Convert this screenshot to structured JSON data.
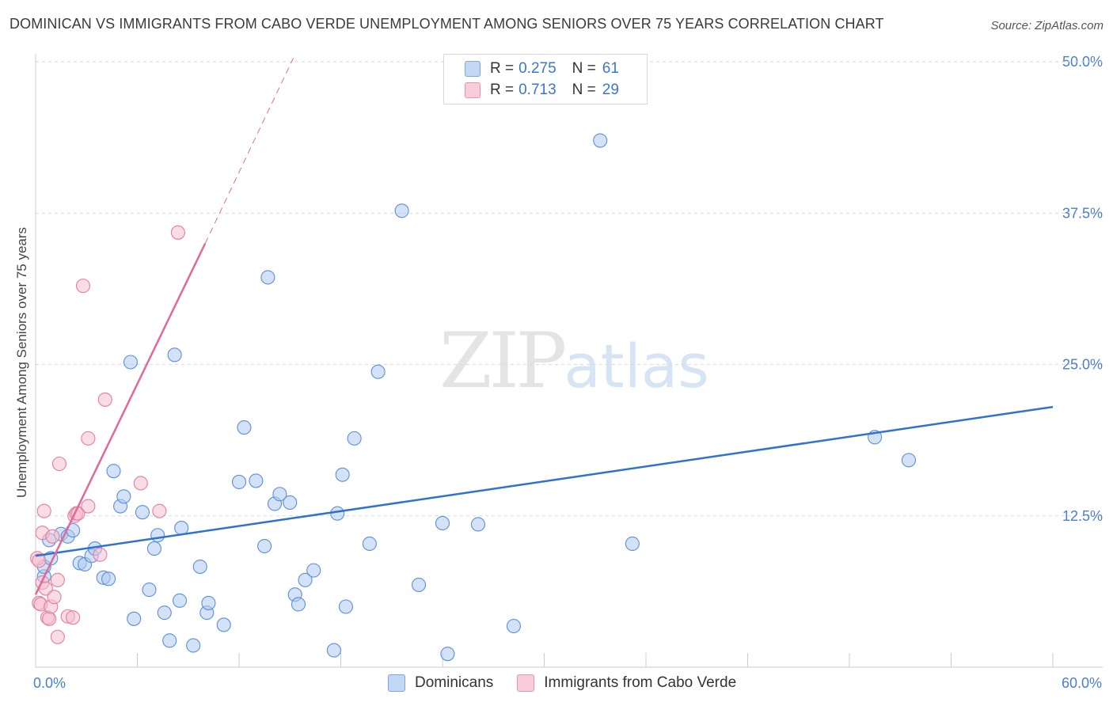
{
  "title": "DOMINICAN VS IMMIGRANTS FROM CABO VERDE UNEMPLOYMENT AMONG SENIORS OVER 75 YEARS CORRELATION CHART",
  "source": "Source: ZipAtlas.com",
  "watermark": {
    "zip": "ZIP",
    "atlas": "atlas"
  },
  "legend": {
    "series1": {
      "r_label": "R = ",
      "r_value": "0.275",
      "n_label": "N = ",
      "n_value": "61"
    },
    "series2": {
      "r_label": "R = ",
      "r_value": "0.713",
      "n_label": "N = ",
      "n_value": "29"
    }
  },
  "colors": {
    "blue_fill": "#aecbf0",
    "blue_stroke": "#5b8fd6",
    "blue_line": "#2f72cf",
    "pink_fill": "#f6bfd0",
    "pink_stroke": "#e27e9f",
    "pink_line": "#e0699a",
    "grid": "#d9d9d9",
    "tick_text": "#4a7fc9"
  },
  "chart_data": {
    "type": "scatter",
    "title": "DOMINICAN VS IMMIGRANTS FROM CABO VERDE UNEMPLOYMENT AMONG SENIORS OVER 75 YEARS CORRELATION CHART",
    "xlabel": "",
    "ylabel": "Unemployment Among Seniors over 75 years",
    "xlim": [
      0,
      60
    ],
    "ylim": [
      0,
      52
    ],
    "x_tick_labels": [
      {
        "value": 0,
        "label": "0.0%"
      },
      {
        "value": 60,
        "label": "60.0%"
      }
    ],
    "y_tick_labels": [
      {
        "value": 12.5,
        "label": "12.5%"
      },
      {
        "value": 25.0,
        "label": "25.0%"
      },
      {
        "value": 37.5,
        "label": "37.5%"
      },
      {
        "value": 50.0,
        "label": "50.0%"
      }
    ],
    "series": [
      {
        "name": "Dominicans",
        "color": "#aecbf0",
        "points": [
          [
            0.5,
            7.5
          ],
          [
            0.5,
            8.3
          ],
          [
            0.8,
            10.5
          ],
          [
            0.9,
            9.0
          ],
          [
            1.5,
            11.0
          ],
          [
            1.9,
            10.8
          ],
          [
            2.2,
            11.3
          ],
          [
            2.6,
            8.6
          ],
          [
            2.9,
            8.5
          ],
          [
            3.3,
            9.2
          ],
          [
            3.5,
            9.8
          ],
          [
            4.0,
            7.4
          ],
          [
            4.3,
            7.3
          ],
          [
            4.6,
            16.2
          ],
          [
            5.0,
            13.3
          ],
          [
            5.2,
            14.1
          ],
          [
            5.6,
            25.2
          ],
          [
            5.8,
            4.0
          ],
          [
            6.3,
            12.8
          ],
          [
            6.7,
            6.4
          ],
          [
            7.0,
            9.8
          ],
          [
            7.2,
            10.9
          ],
          [
            7.6,
            4.5
          ],
          [
            7.9,
            2.2
          ],
          [
            8.2,
            25.8
          ],
          [
            8.5,
            5.5
          ],
          [
            8.6,
            11.5
          ],
          [
            9.3,
            1.8
          ],
          [
            9.7,
            8.3
          ],
          [
            10.1,
            4.5
          ],
          [
            10.2,
            5.3
          ],
          [
            11.1,
            3.5
          ],
          [
            12.0,
            15.3
          ],
          [
            12.3,
            19.8
          ],
          [
            13.0,
            15.4
          ],
          [
            13.5,
            10.0
          ],
          [
            13.7,
            32.2
          ],
          [
            14.1,
            13.5
          ],
          [
            14.4,
            14.3
          ],
          [
            15.0,
            13.6
          ],
          [
            15.3,
            6.0
          ],
          [
            15.5,
            5.2
          ],
          [
            15.9,
            7.2
          ],
          [
            16.4,
            8.0
          ],
          [
            17.6,
            1.4
          ],
          [
            17.8,
            12.7
          ],
          [
            18.1,
            15.9
          ],
          [
            18.3,
            5.0
          ],
          [
            18.8,
            18.9
          ],
          [
            19.7,
            10.2
          ],
          [
            20.2,
            24.4
          ],
          [
            21.6,
            37.7
          ],
          [
            22.6,
            6.8
          ],
          [
            24.0,
            11.9
          ],
          [
            24.3,
            1.1
          ],
          [
            26.1,
            11.8
          ],
          [
            28.2,
            3.4
          ],
          [
            33.3,
            43.5
          ],
          [
            35.2,
            10.2
          ],
          [
            49.5,
            19.0
          ],
          [
            51.5,
            17.1
          ]
        ],
        "trend": {
          "x0": 0,
          "y0": 9.2,
          "x1": 60,
          "y1": 21.5
        }
      },
      {
        "name": "Immigrants from Cabo Verde",
        "color": "#f6bfd0",
        "points": [
          [
            0.1,
            9.0
          ],
          [
            0.2,
            8.8
          ],
          [
            0.2,
            5.3
          ],
          [
            0.3,
            5.2
          ],
          [
            0.4,
            7.0
          ],
          [
            0.4,
            11.1
          ],
          [
            0.5,
            12.9
          ],
          [
            0.6,
            6.5
          ],
          [
            0.7,
            4.1
          ],
          [
            0.8,
            4.0
          ],
          [
            0.9,
            5.0
          ],
          [
            1.0,
            10.8
          ],
          [
            1.1,
            5.8
          ],
          [
            1.3,
            7.2
          ],
          [
            1.3,
            2.5
          ],
          [
            1.4,
            16.8
          ],
          [
            1.9,
            4.2
          ],
          [
            2.2,
            4.1
          ],
          [
            2.3,
            12.5
          ],
          [
            2.4,
            12.7
          ],
          [
            2.5,
            12.7
          ],
          [
            2.8,
            31.5
          ],
          [
            3.1,
            13.3
          ],
          [
            3.1,
            18.9
          ],
          [
            3.8,
            9.3
          ],
          [
            4.1,
            22.1
          ],
          [
            6.2,
            15.2
          ],
          [
            7.3,
            12.9
          ],
          [
            8.4,
            35.9
          ]
        ],
        "trend": {
          "x0": 0,
          "y0": 6.0,
          "x1": 10.0,
          "y1": 35.0
        },
        "trend_dashed_extension": {
          "x0": 10.0,
          "y0": 35.0,
          "x1": 15.2,
          "y1": 50.3
        }
      }
    ]
  },
  "bottom_legend": {
    "series1": "Dominicans",
    "series2": "Immigrants from Cabo Verde"
  }
}
